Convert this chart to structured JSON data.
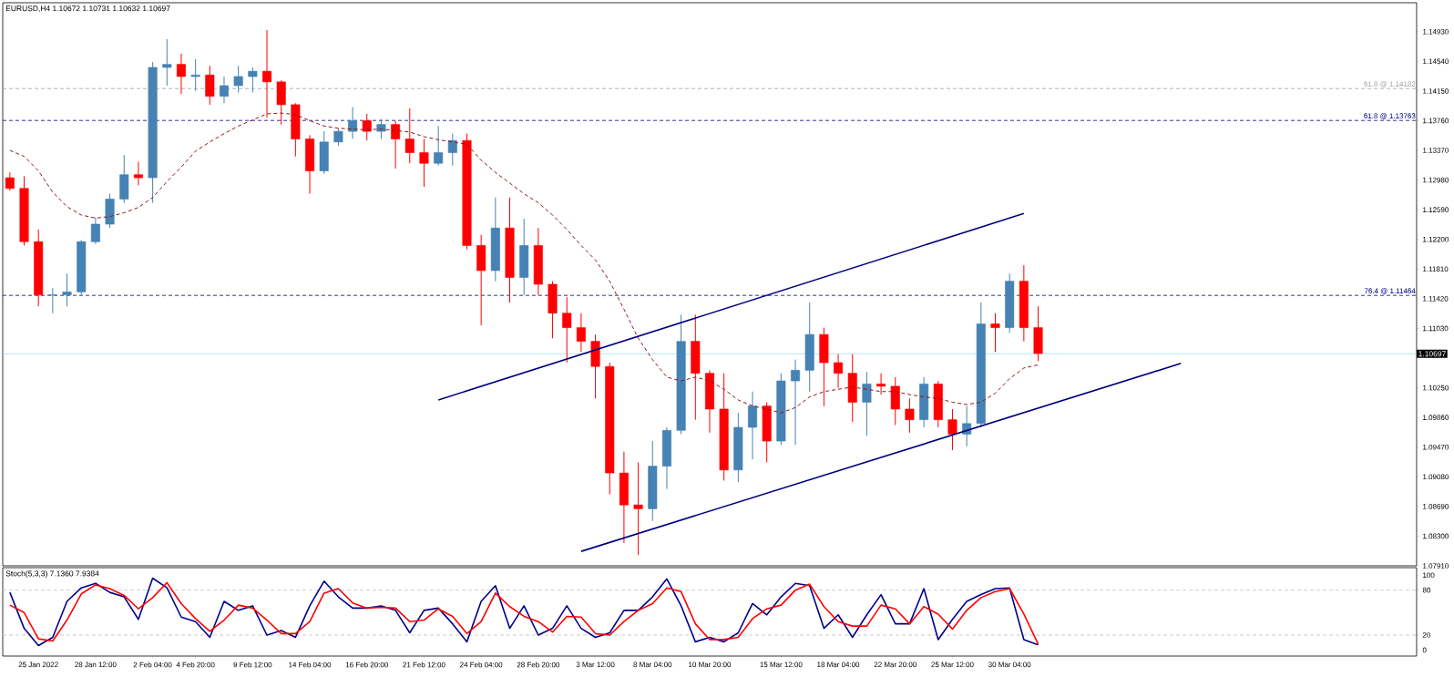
{
  "chart_data": [
    {
      "type": "candlestick",
      "title": "EURUSD,H4 1.10672 1.10731 1.10632 1.10697",
      "tick_labels": "y",
      "categories": [
        null,
        null,
        null,
        null,
        null,
        null,
        null,
        null,
        null,
        null,
        null,
        null,
        null,
        null,
        null,
        null,
        null,
        null,
        null,
        null,
        null,
        null,
        null,
        null,
        null,
        null,
        null,
        null,
        null,
        null,
        null,
        null,
        null,
        null,
        null,
        null,
        null,
        null,
        null,
        null,
        null,
        null,
        null,
        null,
        null,
        null,
        null,
        null,
        null,
        null,
        null,
        null,
        null,
        null,
        null,
        null,
        null,
        null,
        null,
        null,
        null,
        null,
        null,
        null,
        null,
        null,
        null,
        null,
        null,
        null,
        null,
        null,
        null,
        null,
        null,
        null,
        null,
        null,
        null,
        null,
        null,
        null,
        null,
        null,
        null,
        null,
        null,
        null,
        null,
        null,
        null,
        null,
        null,
        null,
        null,
        null,
        null,
        null,
        null
      ],
      "ohlc": [
        [
          1.1301,
          1.1308,
          1.1284,
          1.1287
        ],
        [
          1.1287,
          1.1303,
          1.1212,
          1.1217
        ],
        [
          1.1217,
          1.1233,
          1.1132,
          1.1147
        ],
        [
          1.1147,
          1.1156,
          1.1123,
          1.1147
        ],
        [
          1.1147,
          1.1175,
          1.1132,
          1.1151
        ],
        [
          1.1151,
          1.1219,
          1.1147,
          1.1217
        ],
        [
          1.1217,
          1.1249,
          1.1214,
          1.124
        ],
        [
          1.124,
          1.128,
          1.1235,
          1.1273
        ],
        [
          1.1273,
          1.1331,
          1.1268,
          1.1305
        ],
        [
          1.1305,
          1.1322,
          1.1291,
          1.1301
        ],
        [
          1.1301,
          1.1453,
          1.1268,
          1.1446
        ],
        [
          1.1446,
          1.1483,
          1.1422,
          1.145
        ],
        [
          1.145,
          1.1464,
          1.1411,
          1.1434
        ],
        [
          1.1434,
          1.1457,
          1.1415,
          1.1436
        ],
        [
          1.1436,
          1.1448,
          1.1397,
          1.1408
        ],
        [
          1.1408,
          1.1434,
          1.1399,
          1.1422
        ],
        [
          1.1422,
          1.1448,
          1.1413,
          1.1434
        ],
        [
          1.1434,
          1.1446,
          1.1413,
          1.1441
        ],
        [
          1.1441,
          1.1495,
          1.138,
          1.1427
        ],
        [
          1.1427,
          1.1429,
          1.1371,
          1.1397
        ],
        [
          1.1397,
          1.1399,
          1.1329,
          1.1352
        ],
        [
          1.1352,
          1.1357,
          1.128,
          1.131
        ],
        [
          1.131,
          1.1362,
          1.1306,
          1.1348
        ],
        [
          1.1348,
          1.1366,
          1.1343,
          1.1362
        ],
        [
          1.1362,
          1.1394,
          1.1352,
          1.1376
        ],
        [
          1.1376,
          1.1385,
          1.135,
          1.1362
        ],
        [
          1.1362,
          1.1378,
          1.1352,
          1.1371
        ],
        [
          1.1371,
          1.1376,
          1.1313,
          1.1352
        ],
        [
          1.1352,
          1.1392,
          1.132,
          1.1334
        ],
        [
          1.1334,
          1.1352,
          1.1289,
          1.132
        ],
        [
          1.132,
          1.1369,
          1.1317,
          1.1334
        ],
        [
          1.1334,
          1.1359,
          1.1317,
          1.135
        ],
        [
          1.135,
          1.1359,
          1.1207,
          1.1212
        ],
        [
          1.1212,
          1.1226,
          1.1107,
          1.1179
        ],
        [
          1.1179,
          1.1275,
          1.1165,
          1.1235
        ],
        [
          1.1235,
          1.1275,
          1.1137,
          1.117
        ],
        [
          1.117,
          1.1247,
          1.1147,
          1.1212
        ],
        [
          1.1212,
          1.1235,
          1.1147,
          1.1161
        ],
        [
          1.1161,
          1.1165,
          1.109,
          1.1123
        ],
        [
          1.1123,
          1.1144,
          1.1058,
          1.1104
        ],
        [
          1.1104,
          1.1123,
          1.1072,
          1.1086
        ],
        [
          1.1086,
          1.1095,
          1.1011,
          1.1053
        ],
        [
          1.1053,
          1.1058,
          1.0885,
          1.0913
        ],
        [
          1.0913,
          1.0941,
          1.0821,
          1.0871
        ],
        [
          1.0871,
          1.0927,
          1.0805,
          1.0866
        ],
        [
          1.0866,
          1.0955,
          1.085,
          1.0922
        ],
        [
          1.0922,
          1.0973,
          1.0892,
          1.0969
        ],
        [
          1.0969,
          1.1121,
          1.0964,
          1.1086
        ],
        [
          1.1086,
          1.1121,
          1.0983,
          1.1044
        ],
        [
          1.1044,
          1.1048,
          1.0966,
          1.0997
        ],
        [
          1.0997,
          1.1044,
          1.0903,
          1.0917
        ],
        [
          1.0917,
          1.0992,
          1.0901,
          1.0973
        ],
        [
          1.0973,
          1.102,
          1.0931,
          1.1001
        ],
        [
          1.1001,
          1.1006,
          1.0927,
          1.0955
        ],
        [
          1.0955,
          1.1044,
          1.095,
          1.1034
        ],
        [
          1.1034,
          1.1062,
          1.095,
          1.1048
        ],
        [
          1.1048,
          1.1137,
          1.102,
          1.1095
        ],
        [
          1.1095,
          1.1104,
          1.1001,
          1.1058
        ],
        [
          1.1058,
          1.1069,
          1.1025,
          1.1044
        ],
        [
          1.1044,
          1.1069,
          1.098,
          1.1006
        ],
        [
          1.1006,
          1.1046,
          1.0962,
          1.103
        ],
        [
          1.103,
          1.1044,
          1.1016,
          1.1027
        ],
        [
          1.1027,
          1.1039,
          1.0976,
          1.0997
        ],
        [
          1.0997,
          1.1011,
          1.0966,
          1.0983
        ],
        [
          1.0983,
          1.1039,
          1.0973,
          1.103
        ],
        [
          1.103,
          1.1034,
          1.0973,
          1.0983
        ],
        [
          1.0983,
          1.0997,
          1.0943,
          1.0964
        ],
        [
          1.0964,
          1.1001,
          1.0948,
          1.0978
        ],
        [
          1.0978,
          1.1137,
          1.0973,
          1.1109
        ],
        [
          1.1109,
          1.1123,
          1.1072,
          1.1104
        ],
        [
          1.1104,
          1.1175,
          1.1097,
          1.1165
        ],
        [
          1.1165,
          1.1186,
          1.1086,
          1.1104
        ],
        [
          1.1104,
          1.1132,
          1.106,
          1.107
        ],
        null,
        null,
        null,
        null,
        null,
        null,
        null,
        null,
        null,
        null,
        null,
        null,
        null,
        null,
        null,
        null,
        null,
        null,
        null,
        null,
        null,
        null,
        null,
        null,
        null,
        null
      ],
      "colors": [
        "#ff0000",
        "#ff0000",
        "#ff0000",
        "#4682b4",
        "#4682b4",
        "#4682b4",
        "#4682b4",
        "#4682b4",
        "#4682b4",
        "#ff0000",
        "#4682b4",
        "#4682b4",
        "#ff0000",
        "#4682b4",
        "#ff0000",
        "#4682b4",
        "#4682b4",
        "#4682b4",
        "#ff0000",
        "#ff0000",
        "#ff0000",
        "#ff0000",
        "#4682b4",
        "#4682b4",
        "#4682b4",
        "#ff0000",
        "#4682b4",
        "#ff0000",
        "#ff0000",
        "#ff0000",
        "#4682b4",
        "#4682b4",
        "#ff0000",
        "#ff0000",
        "#4682b4",
        "#ff0000",
        "#4682b4",
        "#ff0000",
        "#ff0000",
        "#ff0000",
        "#ff0000",
        "#ff0000",
        "#ff0000",
        "#ff0000",
        "#ff0000",
        "#4682b4",
        "#4682b4",
        "#4682b4",
        "#ff0000",
        "#ff0000",
        "#ff0000",
        "#4682b4",
        "#4682b4",
        "#ff0000",
        "#4682b4",
        "#4682b4",
        "#4682b4",
        "#ff0000",
        "#ff0000",
        "#ff0000",
        "#4682b4",
        "#ff0000",
        "#ff0000",
        "#ff0000",
        "#4682b4",
        "#ff0000",
        "#ff0000",
        "#4682b4",
        "#4682b4",
        "#ff0000",
        "#4682b4",
        "#ff0000",
        "#ff0000",
        null,
        null,
        null,
        null,
        null,
        null,
        null,
        null,
        null,
        null,
        null,
        null,
        null,
        null,
        null,
        null,
        null,
        null,
        null,
        null,
        null,
        null,
        null,
        null,
        null,
        null
      ],
      "series": [
        {
          "type": "line",
          "color": "#8b1a1a",
          "line_style": "dashed",
          "values": [
            1.1337,
            1.1329,
            1.131,
            1.1282,
            1.1263,
            1.1252,
            1.1248,
            1.125,
            1.1255,
            1.1262,
            1.1275,
            1.1296,
            1.1315,
            1.1336,
            1.1348,
            1.1359,
            1.1369,
            1.1377,
            1.1385,
            1.1386,
            1.1384,
            1.1376,
            1.1369,
            1.1366,
            1.1365,
            1.1364,
            1.1365,
            1.1363,
            1.1361,
            1.1355,
            1.1351,
            1.1348,
            1.1345,
            1.1324,
            1.1308,
            1.1294,
            1.128,
            1.1268,
            1.1252,
            1.1233,
            1.1212,
            1.1193,
            1.1165,
            1.1128,
            1.109,
            1.1062,
            1.1039,
            1.1034,
            1.1039,
            1.1034,
            1.1023,
            1.1009,
            1.1001,
            1.0997,
            1.0992,
            1.0999,
            1.1013,
            1.102,
            1.1023,
            1.1026,
            1.1023,
            1.102,
            1.102,
            1.1016,
            1.1013,
            1.1011,
            1.1006,
            1.1003,
            1.1006,
            1.1018,
            1.1037,
            1.1051,
            1.1055,
            null,
            null,
            null,
            null,
            null,
            null,
            null,
            null,
            null,
            null,
            null,
            null,
            null,
            null,
            null,
            null,
            null,
            null,
            null,
            null,
            null,
            null,
            null,
            null,
            null,
            null
          ]
        },
        {
          "type": "line",
          "color": "#000080",
          "line_style": "solid",
          "values": [
            null,
            null,
            null,
            null,
            null,
            null,
            null,
            null,
            null,
            null,
            null,
            null,
            null,
            null,
            null,
            null,
            null,
            null,
            null,
            null,
            null,
            null,
            null,
            null,
            null,
            null,
            null,
            null,
            null,
            null,
            1.1009,
            null,
            null,
            null,
            null,
            null,
            null,
            null,
            null,
            null,
            null,
            null,
            null,
            null,
            null,
            null,
            null,
            null,
            null,
            null,
            null,
            null,
            null,
            null,
            null,
            null,
            null,
            null,
            null,
            null,
            null,
            null,
            null,
            null,
            null,
            null,
            null,
            null,
            null,
            null,
            null,
            1.1254,
            null,
            null,
            null,
            null,
            null,
            null,
            null,
            null,
            null,
            null,
            null,
            null,
            null,
            null,
            null,
            null,
            null,
            null,
            null,
            null,
            null,
            null,
            null,
            null,
            null,
            null,
            null
          ]
        },
        {
          "type": "line",
          "color": "#000080",
          "line_style": "solid",
          "values": [
            null,
            null,
            null,
            null,
            null,
            null,
            null,
            null,
            null,
            null,
            null,
            null,
            null,
            null,
            null,
            null,
            null,
            null,
            null,
            null,
            null,
            null,
            null,
            null,
            null,
            null,
            null,
            null,
            null,
            null,
            null,
            null,
            null,
            null,
            null,
            null,
            null,
            null,
            null,
            null,
            1.081,
            null,
            null,
            null,
            null,
            null,
            null,
            null,
            null,
            null,
            null,
            null,
            null,
            null,
            null,
            null,
            null,
            null,
            null,
            null,
            null,
            null,
            null,
            null,
            null,
            null,
            null,
            null,
            null,
            null,
            null,
            null,
            null,
            null,
            null,
            null,
            null,
            null,
            null,
            null,
            null,
            null,
            1.1057,
            null,
            null,
            null,
            null,
            null,
            null,
            null,
            null,
            null,
            null,
            null,
            null,
            null,
            null,
            null,
            null
          ]
        }
      ],
      "ylim": [
        1.0791,
        1.1531
      ],
      "yticks": [
        {
          "value": 1.0791,
          "label": "1.07910"
        },
        {
          "value": 1.083,
          "label": "1.08300"
        },
        {
          "value": 1.0869,
          "label": "1.08690"
        },
        {
          "value": 1.0908,
          "label": "1.09080"
        },
        {
          "value": 1.0947,
          "label": "1.09470"
        },
        {
          "value": 1.0986,
          "label": "1.09860"
        },
        {
          "value": 1.1025,
          "label": "1.10250"
        },
        {
          "value": 1.1103,
          "label": "1.11030"
        },
        {
          "value": 1.1142,
          "label": "1.11420"
        },
        {
          "value": 1.1181,
          "label": "1.11810"
        },
        {
          "value": 1.122,
          "label": "1.12200"
        },
        {
          "value": 1.1259,
          "label": "1.12590"
        },
        {
          "value": 1.1298,
          "label": "1.12980"
        },
        {
          "value": 1.1337,
          "label": "1.13370"
        },
        {
          "value": 1.1376,
          "label": "1.13760"
        },
        {
          "value": 1.1415,
          "label": "1.14150"
        },
        {
          "value": 1.1454,
          "label": "1.14540"
        },
        {
          "value": 1.1493,
          "label": "1.14930"
        }
      ],
      "ref_lines": [
        {
          "axis": "y",
          "value": 1.14182,
          "label": "61.8 @ 1.14182",
          "color": "#a0a0a0",
          "line_style": "dashed"
        },
        {
          "axis": "y",
          "value": 1.13763,
          "label": "61.8 @ 1.13763",
          "color": "#000080",
          "line_style": "dashed"
        },
        {
          "axis": "y",
          "value": 1.11464,
          "label": "76.4 @ 1.11464",
          "color": "#000080",
          "line_style": "dashed"
        },
        {
          "axis": "y",
          "value": 1.10697,
          "label": "1.10697",
          "color": "#a8dce6",
          "line_style": "solid"
        }
      ]
    },
    {
      "type": "line",
      "title": "Stoch(5,3,3) 7.1360 7.9384",
      "categories": [
        null,
        null,
        "25 Jan 2022",
        null,
        null,
        null,
        "28 Jan 12:00",
        null,
        null,
        null,
        "2 Feb 04:00",
        null,
        null,
        "4 Feb 20:00",
        null,
        null,
        null,
        "9 Feb 12:00",
        null,
        null,
        null,
        "14 Feb 04:00",
        null,
        null,
        null,
        "16 Feb 20:00",
        null,
        null,
        null,
        "21 Feb 12:00",
        null,
        null,
        null,
        "24 Feb 04:00",
        null,
        null,
        null,
        "28 Feb 20:00",
        null,
        null,
        null,
        "3 Mar 12:00",
        null,
        null,
        null,
        "8 Mar 04:00",
        null,
        null,
        null,
        "10 Mar 20:00",
        null,
        null,
        null,
        null,
        "15 Mar 12:00",
        null,
        null,
        null,
        "18 Mar 04:00",
        null,
        null,
        null,
        "22 Mar 20:00",
        null,
        null,
        null,
        "25 Mar 12:00",
        null,
        null,
        null,
        "30 Mar 04:00",
        null,
        null,
        null,
        null,
        null,
        null,
        null,
        null,
        null,
        null,
        null,
        null,
        null,
        null,
        null,
        null,
        null,
        null,
        null,
        null,
        null,
        null,
        null,
        null,
        null,
        null,
        null,
        null
      ],
      "series": [
        {
          "color": "#00008b",
          "values": [
            77,
            29,
            6,
            17,
            65,
            83,
            89,
            77,
            71,
            41,
            96,
            83,
            44,
            38,
            17,
            65,
            53,
            59,
            20,
            26,
            17,
            59,
            92,
            71,
            56,
            56,
            59,
            53,
            23,
            53,
            56,
            35,
            11,
            65,
            86,
            29,
            59,
            20,
            29,
            59,
            29,
            17,
            23,
            53,
            53,
            71,
            95,
            59,
            11,
            17,
            11,
            23,
            62,
            47,
            71,
            89,
            86,
            29,
            47,
            17,
            47,
            74,
            35,
            35,
            82,
            14,
            41,
            65,
            74,
            82,
            83,
            14,
            7,
            null,
            null,
            null,
            null,
            null,
            null,
            null,
            null,
            null,
            null,
            null,
            null,
            null,
            null,
            null,
            null,
            null,
            null,
            null,
            null,
            null,
            null,
            null,
            null,
            null,
            null
          ]
        },
        {
          "color": "#ff0000",
          "values": [
            60,
            50,
            15,
            12,
            40,
            75,
            87,
            82,
            73,
            55,
            70,
            90,
            62,
            42,
            25,
            40,
            60,
            56,
            40,
            22,
            22,
            38,
            76,
            82,
            63,
            56,
            57,
            56,
            38,
            40,
            55,
            45,
            22,
            38,
            76,
            58,
            45,
            38,
            24,
            45,
            44,
            22,
            20,
            38,
            53,
            62,
            83,
            78,
            35,
            14,
            14,
            17,
            42,
            55,
            60,
            80,
            88,
            58,
            38,
            32,
            32,
            60,
            55,
            35,
            58,
            48,
            28,
            53,
            70,
            78,
            82,
            48,
            8,
            null,
            null,
            null,
            null,
            null,
            null,
            null,
            null,
            null,
            null,
            null,
            null,
            null,
            null,
            null,
            null,
            null,
            null,
            null,
            null,
            null,
            null,
            null,
            null,
            null,
            null
          ]
        }
      ],
      "ylim": [
        -8,
        110
      ],
      "yticks": [
        0,
        20,
        80,
        100
      ],
      "ref_lines": [
        {
          "axis": "y",
          "value": 20,
          "color": "#c0c0c0",
          "line_style": "dashed"
        },
        {
          "axis": "y",
          "value": 80,
          "color": "#c0c0c0",
          "line_style": "dashed"
        }
      ]
    }
  ]
}
